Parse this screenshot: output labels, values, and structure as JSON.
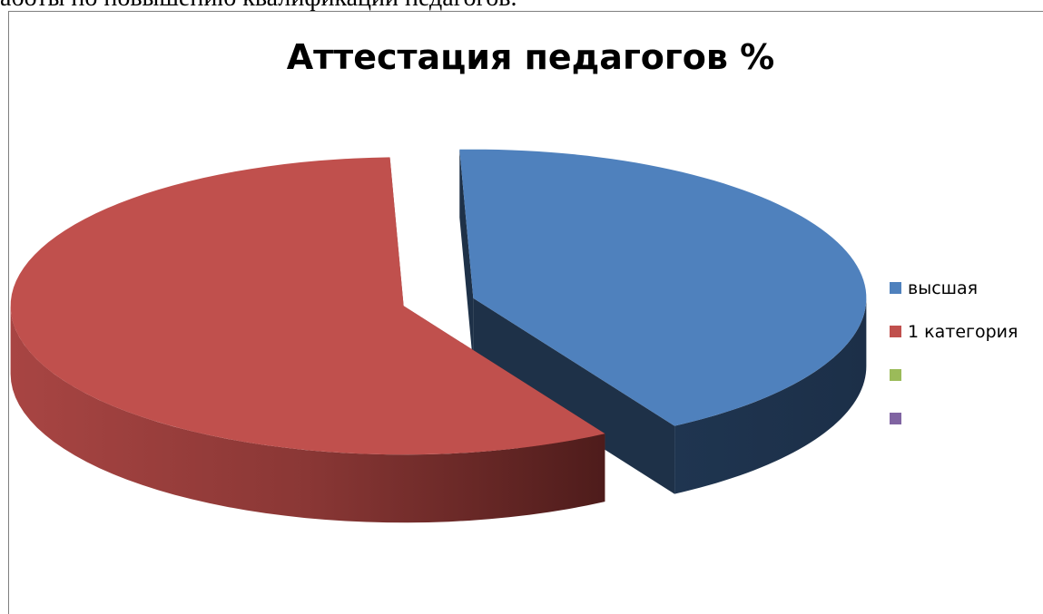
{
  "top_text": "аботы по повышению квалификации педагогов.",
  "chart_data": {
    "type": "pie",
    "title": "Аттестация педагогов %",
    "legend_position": "right",
    "categories": [
      "высшая",
      "1 категория",
      "",
      ""
    ],
    "values": [
      42,
      58,
      0,
      0
    ],
    "colors": [
      "#4f81bd",
      "#c0504d",
      "#9bbb59",
      "#8064a2"
    ],
    "style": "3d-exploded"
  }
}
